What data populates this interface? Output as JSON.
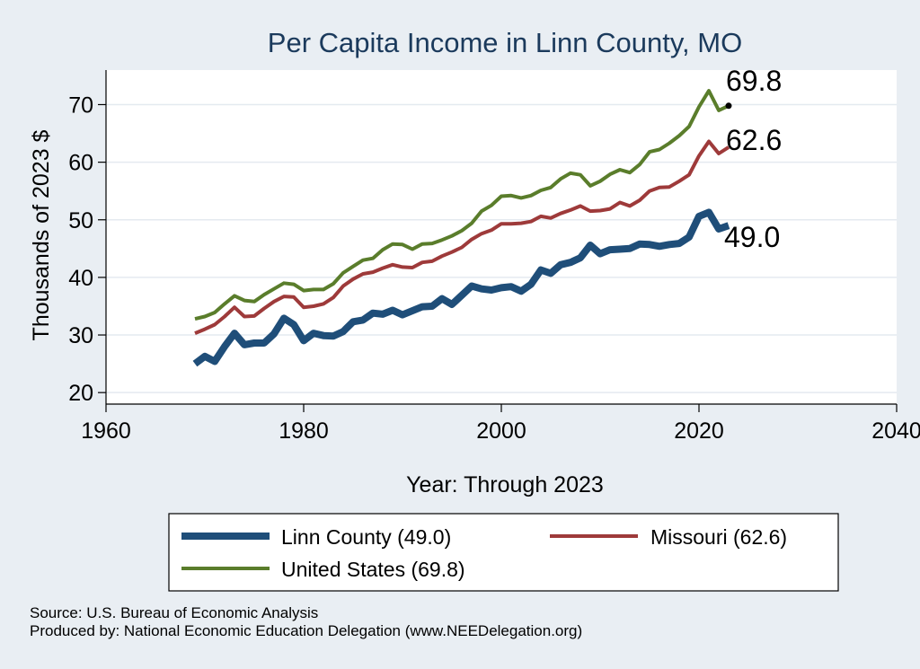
{
  "chart_data": {
    "type": "line",
    "title": "Per Capita Income in Linn County, MO",
    "xlabel": "Year: Through 2023",
    "ylabel": "Thousands of 2023 $",
    "xlim": [
      1960,
      2040
    ],
    "ylim": [
      18,
      76
    ],
    "xticks": [
      "1960",
      "1980",
      "2000",
      "2020",
      "2040"
    ],
    "yticks": [
      "20",
      "30",
      "40",
      "50",
      "60",
      "70"
    ],
    "grid": true,
    "legend_position": "bottom",
    "x": [
      1969,
      1970,
      1971,
      1972,
      1973,
      1974,
      1975,
      1976,
      1977,
      1978,
      1979,
      1980,
      1981,
      1982,
      1983,
      1984,
      1985,
      1986,
      1987,
      1988,
      1989,
      1990,
      1991,
      1992,
      1993,
      1994,
      1995,
      1996,
      1997,
      1998,
      1999,
      2000,
      2001,
      2002,
      2003,
      2004,
      2005,
      2006,
      2007,
      2008,
      2009,
      2010,
      2011,
      2012,
      2013,
      2014,
      2015,
      2016,
      2017,
      2018,
      2019,
      2020,
      2021,
      2022,
      2023
    ],
    "series": [
      {
        "name": "Linn County",
        "legend": "Linn County (49.0)",
        "end_label": "49.0",
        "color": "#1f4e79",
        "values": [
          25.0,
          26.3,
          25.4,
          28.0,
          30.3,
          28.3,
          28.6,
          28.6,
          30.2,
          32.9,
          31.8,
          29.0,
          30.3,
          29.9,
          29.8,
          30.6,
          32.3,
          32.6,
          33.8,
          33.6,
          34.3,
          33.5,
          34.2,
          34.9,
          35.0,
          36.3,
          35.3,
          36.9,
          38.5,
          38.0,
          37.8,
          38.2,
          38.4,
          37.6,
          38.8,
          41.3,
          40.7,
          42.2,
          42.6,
          43.4,
          45.6,
          44.1,
          44.8,
          44.9,
          45.0,
          45.8,
          45.7,
          45.4,
          45.7,
          45.9,
          47.0,
          50.6,
          51.3,
          48.4,
          49.0
        ]
      },
      {
        "name": "Missouri",
        "legend": "Missouri (62.6)",
        "end_label": "62.6",
        "color": "#9e3a3a",
        "values": [
          30.3,
          31.0,
          31.8,
          33.2,
          34.8,
          33.2,
          33.3,
          34.6,
          35.8,
          36.7,
          36.6,
          34.8,
          35.0,
          35.4,
          36.5,
          38.5,
          39.7,
          40.6,
          40.9,
          41.6,
          42.2,
          41.8,
          41.7,
          42.6,
          42.8,
          43.7,
          44.4,
          45.2,
          46.6,
          47.6,
          48.2,
          49.3,
          49.3,
          49.4,
          49.7,
          50.6,
          50.3,
          51.1,
          51.7,
          52.4,
          51.5,
          51.6,
          51.9,
          53.0,
          52.4,
          53.4,
          55.0,
          55.6,
          55.7,
          56.7,
          57.8,
          61.1,
          63.6,
          61.5,
          62.6
        ]
      },
      {
        "name": "United States",
        "legend": "United States (69.8)",
        "end_label": "69.8",
        "color": "#5a7d2b",
        "values": [
          32.8,
          33.2,
          33.9,
          35.4,
          36.8,
          36.0,
          35.8,
          37.0,
          38.0,
          39.0,
          38.8,
          37.7,
          37.9,
          37.9,
          38.9,
          40.8,
          41.9,
          43.0,
          43.3,
          44.8,
          45.8,
          45.7,
          44.9,
          45.8,
          45.9,
          46.5,
          47.2,
          48.1,
          49.4,
          51.5,
          52.5,
          54.1,
          54.2,
          53.8,
          54.2,
          55.1,
          55.6,
          57.1,
          58.1,
          57.8,
          55.9,
          56.7,
          57.9,
          58.7,
          58.2,
          59.6,
          61.8,
          62.2,
          63.3,
          64.6,
          66.2,
          69.6,
          72.4,
          69.0,
          69.8
        ]
      }
    ]
  },
  "notes": {
    "source": "Source: U.S. Bureau of Economic Analysis",
    "produced_by": "Produced by: National Economic Education Delegation (www.NEEDelegation.org)"
  }
}
